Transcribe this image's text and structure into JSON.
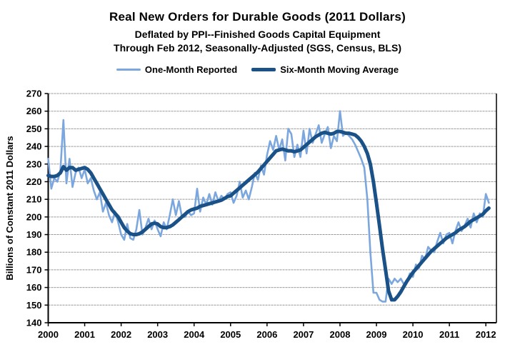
{
  "chart_data": {
    "type": "line",
    "title": "Real New Orders for Durable Goods (2011 Dollars)",
    "subtitle1": "Deflated by PPI--Finished Goods Capital Equipment",
    "subtitle2": "Through Feb 2012, Seasonally-Adjusted  (SGS, Census, BLS)",
    "ylabel": "Billions of Constant 2011 Dollars",
    "ylim": [
      140,
      270
    ],
    "ytick_step": 10,
    "x_start_year": 2000,
    "x_end_year_axis": 2012.29,
    "x_tick_labels": [
      "2000",
      "2001",
      "2002",
      "2003",
      "2004",
      "2005",
      "2006",
      "2007",
      "2008",
      "2009",
      "2010",
      "2011",
      "2012"
    ],
    "grid": true,
    "legend_position": "top",
    "axis_color": "#000000",
    "grid_color": "#999999",
    "series": [
      {
        "name": "One-Month Reported",
        "color": "#7BA7DE",
        "width": 2.6,
        "values": [
          233,
          216,
          222,
          220,
          226,
          255,
          219,
          233,
          217,
          225,
          228,
          222,
          227,
          219,
          222,
          215,
          210,
          214,
          203,
          208,
          201,
          197,
          203,
          197,
          190,
          187,
          196,
          188,
          187,
          193,
          204,
          190,
          194,
          199,
          193,
          198,
          193,
          189,
          197,
          193,
          201,
          210,
          201,
          209,
          200,
          200,
          203,
          201,
          202,
          216,
          203,
          211,
          207,
          213,
          207,
          214,
          209,
          212,
          210,
          213,
          214,
          208,
          212,
          220,
          211,
          215,
          210,
          217,
          225,
          221,
          229,
          224,
          235,
          243,
          238,
          246,
          238,
          244,
          232,
          250,
          247,
          234,
          241,
          234,
          249,
          236,
          250,
          242,
          247,
          252,
          242,
          247,
          251,
          239,
          246,
          243,
          260,
          246,
          248,
          246,
          244,
          241,
          237,
          233,
          228,
          210,
          180,
          157,
          157,
          153,
          152,
          152,
          165,
          162,
          165,
          163,
          165,
          162,
          163,
          168,
          166,
          173,
          171,
          178,
          176,
          183,
          181,
          180,
          186,
          191,
          185,
          190,
          191,
          185,
          192,
          197,
          192,
          195,
          199,
          194,
          202,
          197,
          202,
          200,
          213,
          208
        ]
      },
      {
        "name": "Six-Month Moving Average",
        "color": "#1A5187",
        "width": 5,
        "values": [
          223.5,
          223,
          223,
          223.5,
          225,
          228.5,
          226.5,
          228,
          228,
          226.5,
          227,
          227.5,
          228,
          227,
          225,
          222,
          219,
          216,
          213,
          210,
          207,
          204,
          202,
          200,
          197,
          194,
          192,
          190.5,
          190,
          190,
          190.5,
          191.5,
          193,
          194.5,
          196,
          196.5,
          196,
          194.5,
          194,
          194,
          194.5,
          195.5,
          197,
          198.5,
          200,
          201.5,
          203,
          204,
          204.5,
          205,
          206,
          206.5,
          207,
          207.5,
          208,
          208.5,
          209,
          209.5,
          210.5,
          211.5,
          212,
          213.5,
          215,
          216.5,
          218,
          219.5,
          221,
          222.5,
          224,
          225.5,
          227.5,
          229.5,
          231.5,
          233.5,
          235.5,
          237.5,
          238,
          238.5,
          238,
          237.5,
          237.5,
          237,
          237.5,
          238,
          239.5,
          241,
          242.5,
          244,
          245.5,
          246.5,
          247.5,
          248,
          247.5,
          247,
          247.5,
          248.5,
          248.5,
          248,
          247.5,
          247.5,
          247,
          246.5,
          245,
          243,
          240,
          236,
          230,
          220,
          208,
          195,
          182,
          170,
          158,
          153,
          153,
          155,
          157.5,
          160.5,
          163.5,
          166,
          168.5,
          170.5,
          172.5,
          174.5,
          176.5,
          178.5,
          180.5,
          182,
          183.5,
          185,
          186.5,
          188,
          189,
          190,
          191,
          192.5,
          193.5,
          194.5,
          196,
          197.5,
          198.5,
          199.5,
          200.5,
          201.5,
          203.5,
          205
        ]
      }
    ]
  }
}
